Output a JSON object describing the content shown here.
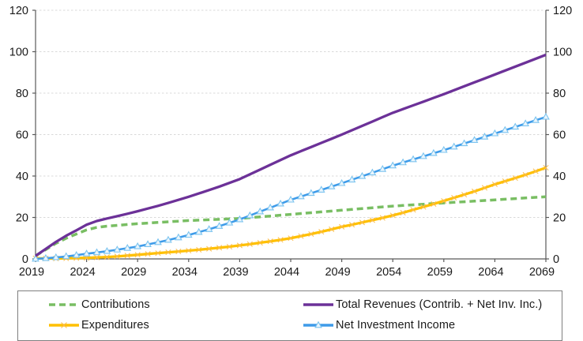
{
  "chart_data": {
    "type": "line",
    "title": "",
    "xlabel": "",
    "ylabel": "",
    "x": [
      2019,
      2020,
      2021,
      2022,
      2023,
      2024,
      2025,
      2026,
      2027,
      2028,
      2029,
      2030,
      2031,
      2032,
      2033,
      2034,
      2035,
      2036,
      2037,
      2038,
      2039,
      2040,
      2041,
      2042,
      2043,
      2044,
      2045,
      2046,
      2047,
      2048,
      2049,
      2050,
      2051,
      2052,
      2053,
      2054,
      2055,
      2056,
      2057,
      2058,
      2059,
      2060,
      2061,
      2062,
      2063,
      2064,
      2065,
      2066,
      2067,
      2068,
      2069
    ],
    "x_ticks": [
      2019,
      2024,
      2029,
      2034,
      2039,
      2044,
      2049,
      2054,
      2059,
      2064,
      2069
    ],
    "y_ticks": [
      0,
      20,
      40,
      60,
      80,
      100,
      120
    ],
    "ylim": [
      0,
      120
    ],
    "y_axis_sides": [
      "left",
      "right"
    ],
    "grid": "horizontal-dashed",
    "grid_color": "#d9d9d9",
    "axis_color": "#595959",
    "text_color": "#1a1a1a",
    "legend_position": "bottom-boxed-two-columns",
    "series": [
      {
        "name": "Contributions",
        "color": "#79be63",
        "line_style": "dashed",
        "marker": "none",
        "values": [
          1.5,
          4.5,
          7.5,
          10,
          12,
          14,
          15.2,
          15.8,
          16.2,
          16.6,
          17,
          17.3,
          17.6,
          17.9,
          18.2,
          18.5,
          18.7,
          18.9,
          19.1,
          19.3,
          19.5,
          19.9,
          20.3,
          20.7,
          21.1,
          21.5,
          21.9,
          22.3,
          22.7,
          23.1,
          23.5,
          23.9,
          24.3,
          24.7,
          25.1,
          25.5,
          25.8,
          26.1,
          26.4,
          26.7,
          27,
          27.3,
          27.6,
          27.9,
          28.2,
          28.5,
          28.8,
          29.1,
          29.4,
          29.7,
          30
        ]
      },
      {
        "name": "Expenditures",
        "color": "#ffc000",
        "line_style": "solid",
        "marker": "x",
        "marker_color": "#fbbc4d",
        "values": [
          0.3,
          0.2,
          0.2,
          0.3,
          0.4,
          0.5,
          0.7,
          0.9,
          1.2,
          1.6,
          2,
          2.4,
          2.8,
          3.2,
          3.6,
          4,
          4.4,
          4.9,
          5.4,
          5.9,
          6.5,
          7.1,
          7.8,
          8.5,
          9.2,
          10,
          11,
          12,
          13.1,
          14.3,
          15.5,
          16.5,
          17.6,
          18.7,
          19.8,
          21,
          22.3,
          23.7,
          25.1,
          26.5,
          28,
          29.5,
          31,
          32.6,
          34.3,
          36,
          37.5,
          39,
          40.6,
          42.3,
          44
        ]
      },
      {
        "name": "Total Revenues (Contrib. + Net Inv. Inc.)",
        "color": "#6c3198",
        "line_style": "solid",
        "marker": "none",
        "values": [
          1.5,
          4.8,
          8.2,
          11.2,
          13.8,
          16.5,
          18.3,
          19.5,
          20.6,
          21.8,
          23,
          24.3,
          25.6,
          27,
          28.5,
          30,
          31.6,
          33.2,
          34.9,
          36.7,
          38.5,
          40.8,
          43.1,
          45.4,
          47.7,
          50,
          52,
          54,
          56,
          58,
          60,
          62.1,
          64.2,
          66.3,
          68.4,
          70.5,
          72.3,
          74.1,
          75.9,
          77.7,
          79.5,
          81.4,
          83.3,
          85.2,
          87.1,
          89,
          90.9,
          92.8,
          94.7,
          96.6,
          98.5
        ]
      },
      {
        "name": "Net Investment Income",
        "color": "#3e9be9",
        "line_style": "solid",
        "marker": "triangle",
        "marker_color": "#7cc4ef",
        "marker_fill": "#eaf5fd",
        "values": [
          0,
          0.3,
          0.7,
          1.2,
          1.8,
          2.5,
          3.1,
          3.7,
          4.4,
          5.2,
          6,
          7,
          8,
          9.1,
          10.3,
          11.5,
          12.9,
          14.3,
          15.8,
          17.4,
          19,
          20.9,
          22.8,
          24.7,
          26.6,
          28.5,
          30.1,
          31.7,
          33.3,
          34.9,
          36.5,
          38.2,
          39.9,
          41.6,
          43.3,
          45,
          46.5,
          48,
          49.5,
          51,
          52.5,
          54.1,
          55.7,
          57.3,
          58.9,
          60.5,
          62.1,
          63.7,
          65.3,
          66.9,
          68.5
        ]
      }
    ],
    "draw_order": [
      0,
      1,
      3,
      2
    ],
    "legend_columns": [
      [
        0,
        1
      ],
      [
        2,
        3
      ]
    ]
  }
}
